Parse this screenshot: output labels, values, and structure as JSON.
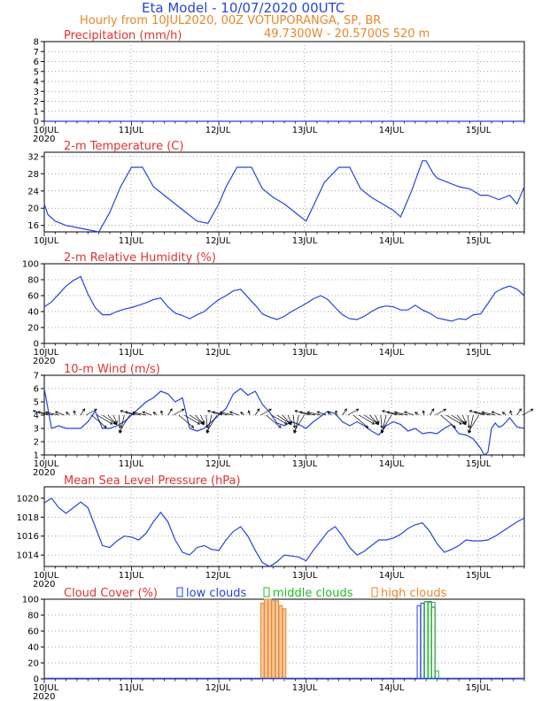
{
  "header": {
    "title": "Eta Model - 10/07/2020 00UTC",
    "line1": "Hourly from 10JUL2020, 00Z  VOTUPORANGA, SP, BR",
    "line2": "49.7300W - 20.5700S    520  m"
  },
  "colors": {
    "series": "#2646d9",
    "title": "#e03333",
    "header": "#e8872a",
    "low": "#2646d9",
    "middle": "#22bb22",
    "high": "#e8872a"
  },
  "chart_data": [
    {
      "id": "precip",
      "type": "line",
      "title": "Precipitation (mm/h)",
      "x_labels": [
        "10JUL",
        "11JUL",
        "12JUL",
        "13JUL",
        "14JUL",
        "15JUL"
      ],
      "year_label": "2020",
      "ylim": [
        0,
        8
      ],
      "yticks": [
        0,
        1,
        2,
        3,
        4,
        5,
        6,
        7,
        8
      ],
      "series": [
        {
          "x": [
            0,
            132
          ],
          "y": [
            0,
            0
          ]
        }
      ]
    },
    {
      "id": "temp",
      "type": "line",
      "title": "2-m Temperature (C)",
      "x_labels": [
        "10JUL",
        "11JUL",
        "12JUL",
        "13JUL",
        "14JUL",
        "15JUL"
      ],
      "year_label": "",
      "ylim": [
        14.5,
        33
      ],
      "yticks": [
        16,
        20,
        24,
        28,
        32
      ],
      "series": [
        {
          "x": [
            0,
            1,
            3,
            6,
            9,
            12,
            15,
            18,
            21,
            24,
            27,
            30,
            33,
            36,
            39,
            42,
            45,
            48,
            50,
            53,
            57,
            60,
            63,
            66,
            69,
            72,
            74,
            77,
            81,
            84,
            87,
            90,
            93,
            96,
            98,
            101,
            104,
            105,
            107,
            108,
            111,
            114,
            117,
            120,
            122,
            125,
            128,
            130,
            132
          ],
          "y": [
            21,
            18.5,
            17,
            16,
            15.5,
            15,
            14.5,
            19,
            25,
            29.5,
            29.5,
            25,
            23,
            21,
            19,
            17,
            16.5,
            21,
            25,
            29.5,
            29.5,
            24.5,
            22.5,
            21,
            19,
            17,
            20.5,
            26,
            29.5,
            29.5,
            24.5,
            22.5,
            21,
            19.5,
            18,
            24,
            31,
            31,
            28,
            27,
            26,
            25,
            24.5,
            23,
            23,
            22,
            23,
            21,
            25
          ]
        }
      ]
    },
    {
      "id": "rh",
      "type": "line",
      "title": "2-m Relative Humidity (%)",
      "x_labels": [
        "10JUL",
        "11JUL",
        "12JUL",
        "13JUL",
        "14JUL",
        "15JUL"
      ],
      "year_label": "2020",
      "ylim": [
        0,
        100
      ],
      "yticks": [
        0,
        20,
        40,
        60,
        80,
        100
      ],
      "series": [
        {
          "x": [
            0,
            2,
            4,
            6,
            8,
            10,
            12,
            14,
            16,
            18,
            20,
            22,
            24,
            26,
            28,
            30,
            32,
            34,
            36,
            38,
            40,
            42,
            44,
            46,
            48,
            50,
            52,
            54,
            56,
            58,
            60,
            62,
            64,
            66,
            68,
            70,
            72,
            74,
            76,
            78,
            80,
            82,
            84,
            86,
            88,
            90,
            92,
            94,
            96,
            98,
            100,
            102,
            104,
            106,
            108,
            110,
            112,
            114,
            116,
            118,
            120,
            122,
            124,
            126,
            128,
            130,
            132
          ],
          "y": [
            46,
            52,
            62,
            72,
            79,
            84,
            62,
            45,
            36,
            36,
            40,
            43,
            45,
            48,
            51,
            55,
            57,
            46,
            38,
            35,
            31,
            36,
            40,
            48,
            55,
            60,
            66,
            68,
            58,
            48,
            37,
            33,
            30,
            34,
            40,
            45,
            50,
            56,
            60,
            55,
            45,
            36,
            31,
            30,
            34,
            40,
            45,
            47,
            46,
            42,
            42,
            48,
            42,
            38,
            32,
            30,
            28,
            31,
            30,
            36,
            37,
            50,
            64,
            69,
            72,
            68,
            60
          ]
        }
      ]
    },
    {
      "id": "wind",
      "type": "line",
      "title": "10-m Wind (m/s)",
      "x_labels": [
        "10JUL",
        "11JUL",
        "12JUL",
        "13JUL",
        "14JUL",
        "15JUL"
      ],
      "year_label": "2020",
      "ylim": [
        1,
        7
      ],
      "yticks": [
        1,
        2,
        3,
        4,
        5,
        6,
        7
      ],
      "series": [
        {
          "x": [
            0,
            2,
            4,
            6,
            8,
            10,
            12,
            14,
            16,
            18,
            20,
            22,
            24,
            26,
            28,
            30,
            32,
            34,
            36,
            38,
            40,
            42,
            44,
            46,
            48,
            50,
            52,
            54,
            56,
            58,
            60,
            62,
            64,
            66,
            68,
            70,
            72,
            74,
            76,
            78,
            80,
            82,
            84,
            86,
            88,
            90,
            92,
            94,
            96,
            98,
            100,
            102,
            104,
            106,
            108,
            110,
            112,
            114,
            116,
            118,
            120,
            121,
            122,
            123,
            124,
            125,
            126,
            128,
            130,
            132
          ],
          "y": [
            6,
            3,
            3.2,
            3,
            3,
            3,
            3.5,
            4.3,
            3,
            3,
            3.2,
            3.5,
            4,
            4.5,
            5,
            5.3,
            5.8,
            5.6,
            5,
            5.3,
            3,
            2.8,
            3,
            3.5,
            4,
            4.5,
            5.6,
            6,
            5.5,
            5.8,
            4.8,
            4.2,
            3.4,
            3.2,
            3.5,
            3.3,
            3,
            3.5,
            3.9,
            4.3,
            4.1,
            3.5,
            3.2,
            3.5,
            3.2,
            2.8,
            2.5,
            3.2,
            3.5,
            3.3,
            2.8,
            3,
            2.6,
            2.7,
            2.6,
            3,
            3.3,
            2.6,
            2.5,
            2.2,
            1.5,
            1,
            1.2,
            3,
            3.4,
            3.1,
            3.2,
            3.8,
            3.1,
            3
          ]
        }
      ],
      "vectors": true
    },
    {
      "id": "mslp",
      "type": "line",
      "title": "Mean Sea Level Pressure (hPa)",
      "x_labels": [
        "10JUL",
        "11JUL",
        "12JUL",
        "13JUL",
        "14JUL",
        "15JUL"
      ],
      "year_label": "2020",
      "ylim": [
        1012.8,
        1021.2
      ],
      "yticks": [
        1014,
        1016,
        1018,
        1020
      ],
      "series": [
        {
          "x": [
            0,
            2,
            4,
            6,
            8,
            10,
            12,
            14,
            16,
            18,
            20,
            22,
            24,
            26,
            28,
            30,
            32,
            34,
            36,
            38,
            40,
            42,
            44,
            46,
            48,
            50,
            52,
            54,
            56,
            58,
            60,
            62,
            64,
            66,
            68,
            70,
            72,
            74,
            76,
            78,
            80,
            82,
            84,
            86,
            88,
            90,
            92,
            94,
            96,
            98,
            100,
            102,
            104,
            106,
            108,
            110,
            112,
            114,
            116,
            118,
            120,
            122,
            124,
            126,
            128,
            130,
            132
          ],
          "y": [
            1019.5,
            1020,
            1019,
            1018.4,
            1019,
            1019.6,
            1019,
            1017,
            1015,
            1014.8,
            1015.5,
            1016,
            1015.9,
            1015.6,
            1016.3,
            1017.5,
            1018.5,
            1017.5,
            1015.6,
            1014.3,
            1014,
            1014.8,
            1015,
            1014.6,
            1014.5,
            1015.6,
            1016.5,
            1017,
            1016,
            1014.5,
            1013.2,
            1012.8,
            1013.3,
            1014,
            1013.9,
            1013.8,
            1013.4,
            1014.5,
            1015.5,
            1016.5,
            1017,
            1016,
            1014.8,
            1014,
            1014.4,
            1015,
            1015.6,
            1015.6,
            1015.8,
            1016.2,
            1016.8,
            1017.2,
            1017.4,
            1016.5,
            1015.2,
            1014.3,
            1014.6,
            1015,
            1015.6,
            1015.5,
            1015.5,
            1015.6,
            1016,
            1016.5,
            1017,
            1017.5,
            1017.9
          ]
        }
      ]
    },
    {
      "id": "cloud",
      "type": "bar",
      "title": "Cloud Cover (%)",
      "legend": [
        {
          "key": "low",
          "label": "low clouds"
        },
        {
          "key": "middle",
          "label": "middle clouds"
        },
        {
          "key": "high",
          "label": "high clouds"
        }
      ],
      "x_labels": [
        "10JUL",
        "11JUL",
        "12JUL",
        "13JUL",
        "14JUL",
        "15JUL"
      ],
      "year_label": "2020",
      "ylim": [
        0,
        100
      ],
      "yticks": [
        0,
        20,
        40,
        60,
        80,
        100
      ],
      "bars": [
        {
          "layer": "high",
          "x": 60,
          "value": 95
        },
        {
          "layer": "high",
          "x": 61,
          "value": 100
        },
        {
          "layer": "high",
          "x": 62,
          "value": 100
        },
        {
          "layer": "high",
          "x": 63,
          "value": 98
        },
        {
          "layer": "high",
          "x": 64,
          "value": 98
        },
        {
          "layer": "high",
          "x": 65,
          "value": 92
        },
        {
          "layer": "high",
          "x": 66,
          "value": 88
        },
        {
          "layer": "low",
          "x": 103,
          "value": 92
        },
        {
          "layer": "low",
          "x": 104,
          "value": 95
        },
        {
          "layer": "low",
          "x": 105,
          "value": 97
        },
        {
          "layer": "low",
          "x": 106,
          "value": 97
        },
        {
          "layer": "low",
          "x": 107,
          "value": 90
        },
        {
          "layer": "middle",
          "x": 105,
          "value": 97
        },
        {
          "layer": "middle",
          "x": 106,
          "value": 96
        },
        {
          "layer": "middle",
          "x": 107,
          "value": 96
        },
        {
          "layer": "middle",
          "x": 108,
          "value": 10
        }
      ]
    }
  ]
}
